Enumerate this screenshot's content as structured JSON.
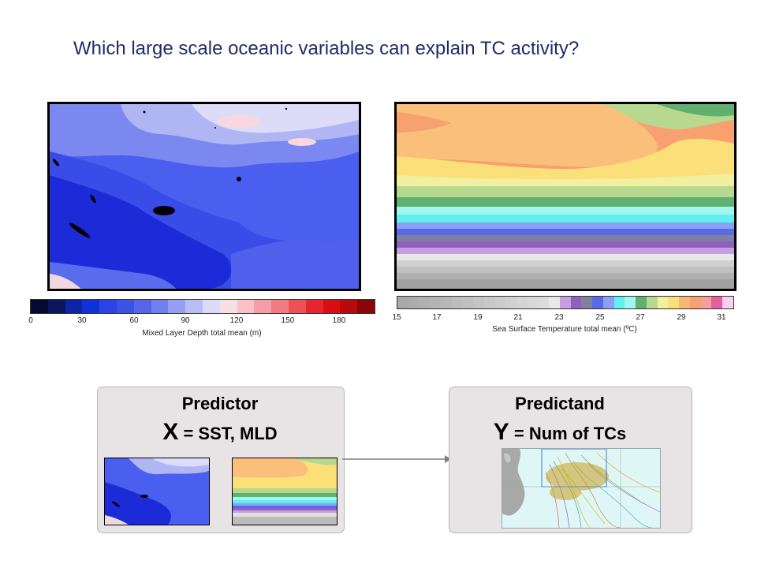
{
  "slide": {
    "title": "Which large scale oceanic variables can explain TC activity?"
  },
  "mld_colorbar": {
    "ticks": [
      "0",
      "30",
      "60",
      "90",
      "120",
      "150",
      "180"
    ],
    "label": "Mixed Layer Depth total mean (m)",
    "colors": [
      "#050a30",
      "#0a1660",
      "#0d24a8",
      "#1030d8",
      "#2a44e8",
      "#3c52e6",
      "#5564ea",
      "#7080ee",
      "#95a0f0",
      "#b8bef4",
      "#dcdcf8",
      "#f6e0e6",
      "#f8c2c8",
      "#f69ea6",
      "#f27a82",
      "#ee5058",
      "#e6252c",
      "#d80e12",
      "#b80a0c",
      "#8a0606"
    ]
  },
  "sst_colorbar": {
    "ticks": [
      "15",
      "17",
      "19",
      "21",
      "23",
      "25",
      "27",
      "29",
      "31"
    ],
    "label": "Sea Surface Temperature total mean (ºC)",
    "colors": [
      "#a8a8a8",
      "#acacac",
      "#b0b0b0",
      "#b4b4b4",
      "#b8b8b8",
      "#bcbcbc",
      "#c0c0c0",
      "#c4c4c4",
      "#c8c8c8",
      "#cccccc",
      "#d0d0d0",
      "#d4d4d4",
      "#d8d8d8",
      "#dcdcdc",
      "#e8e8e8",
      "#c79fe0",
      "#9060c0",
      "#8080a0",
      "#5a6ae6",
      "#8aa0f6",
      "#60f0f0",
      "#a0f6f0",
      "#60b070",
      "#b8d890",
      "#f0f0a0",
      "#fbe07a",
      "#f8b870",
      "#f8a070",
      "#f49e9e",
      "#e060a0",
      "#f8d0f0"
    ]
  },
  "predictor": {
    "heading": "Predictor",
    "var": "X",
    "rest": " = SST, MLD"
  },
  "predictand": {
    "heading": "Predictand",
    "var": "Y",
    "rest": " = Num of TCs"
  }
}
